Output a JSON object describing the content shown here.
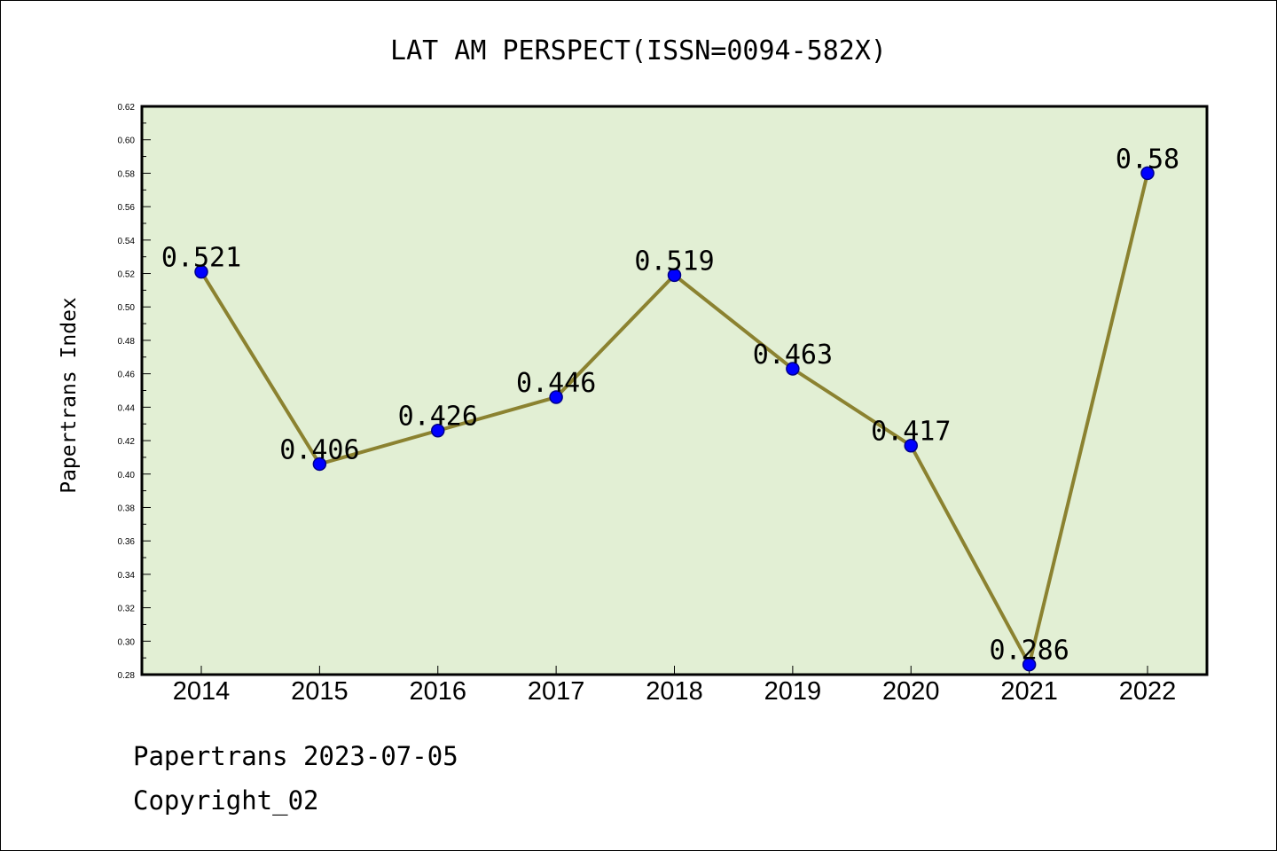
{
  "chart_data": {
    "type": "line",
    "title": "LAT AM PERSPECT(ISSN=0094-582X)",
    "xlabel": "",
    "ylabel": "Papertrans Index",
    "categories": [
      "2014",
      "2015",
      "2016",
      "2017",
      "2018",
      "2019",
      "2020",
      "2021",
      "2022"
    ],
    "series": [
      {
        "values": [
          0.521,
          0.406,
          0.426,
          0.446,
          0.519,
          0.463,
          0.417,
          0.286,
          0.58
        ],
        "labels": [
          "0.521",
          "0.406",
          "0.426",
          "0.446",
          "0.519",
          "0.463",
          "0.417",
          "0.286",
          "0.58"
        ]
      }
    ],
    "ylim": [
      0.28,
      0.62
    ],
    "yticks": [
      "0.28",
      "0.30",
      "0.32",
      "0.34",
      "0.36",
      "0.38",
      "0.40",
      "0.42",
      "0.44",
      "0.46",
      "0.48",
      "0.50",
      "0.52",
      "0.54",
      "0.56",
      "0.58",
      "0.60",
      "0.62"
    ],
    "grid": false,
    "legend": "none",
    "colors": {
      "plot_background": "#e2efd4",
      "line": "#8b8230",
      "marker_fill": "#0000ff",
      "marker_stroke": "#00008b"
    }
  },
  "footer": {
    "date_line": "Papertrans 2023-07-05",
    "copyright_line": "Copyright_02"
  }
}
